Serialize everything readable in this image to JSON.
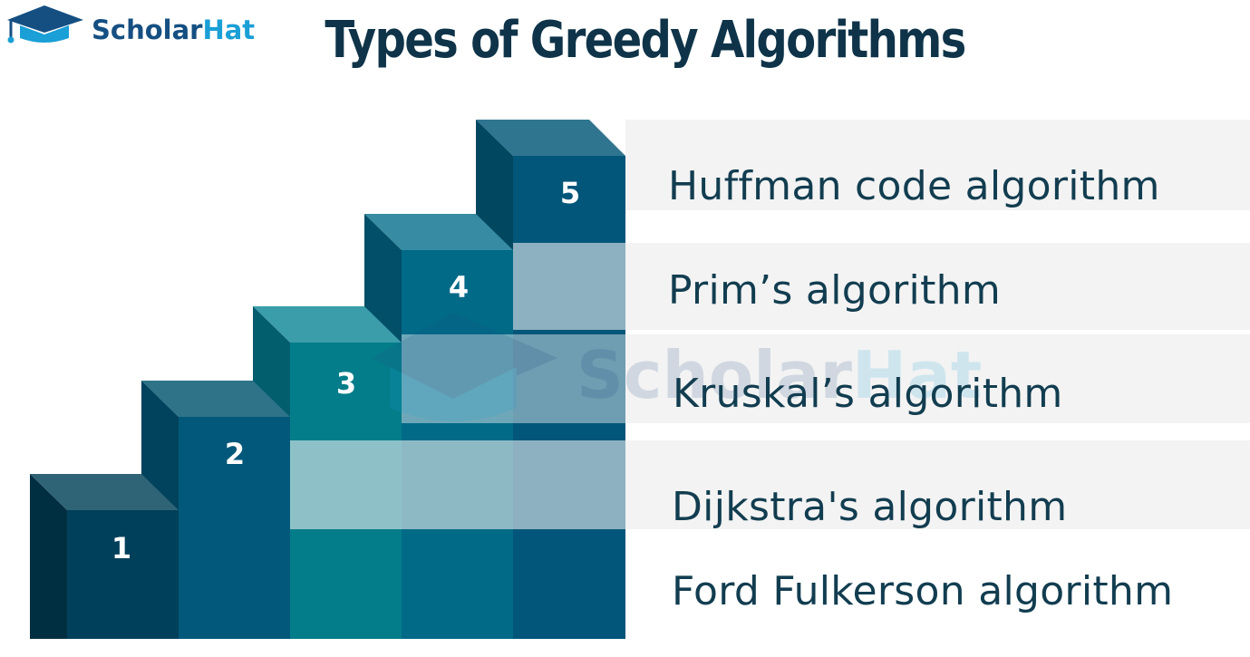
{
  "brand": {
    "name_part1": "Scholar",
    "name_part2": "Hat",
    "primary_color": "#154f82",
    "accent_color": "#1a9fd6"
  },
  "title": "Types of Greedy Algorithms",
  "steps": [
    {
      "number": "1",
      "label": "Ford Fulkerson algorithm",
      "color": "#01405a"
    },
    {
      "number": "2",
      "label": "Dijkstra's algorithm",
      "color": "#02587a"
    },
    {
      "number": "3",
      "label": "Kruskal’s algorithm",
      "color": "#047d8a"
    },
    {
      "number": "4",
      "label": "Prim’s algorithm",
      "color": "#016a87"
    },
    {
      "number": "5",
      "label": "Huffman code algorithm",
      "color": "#02567a"
    }
  ],
  "watermark": {
    "part1": "Scholar",
    "part2": "Hat"
  }
}
